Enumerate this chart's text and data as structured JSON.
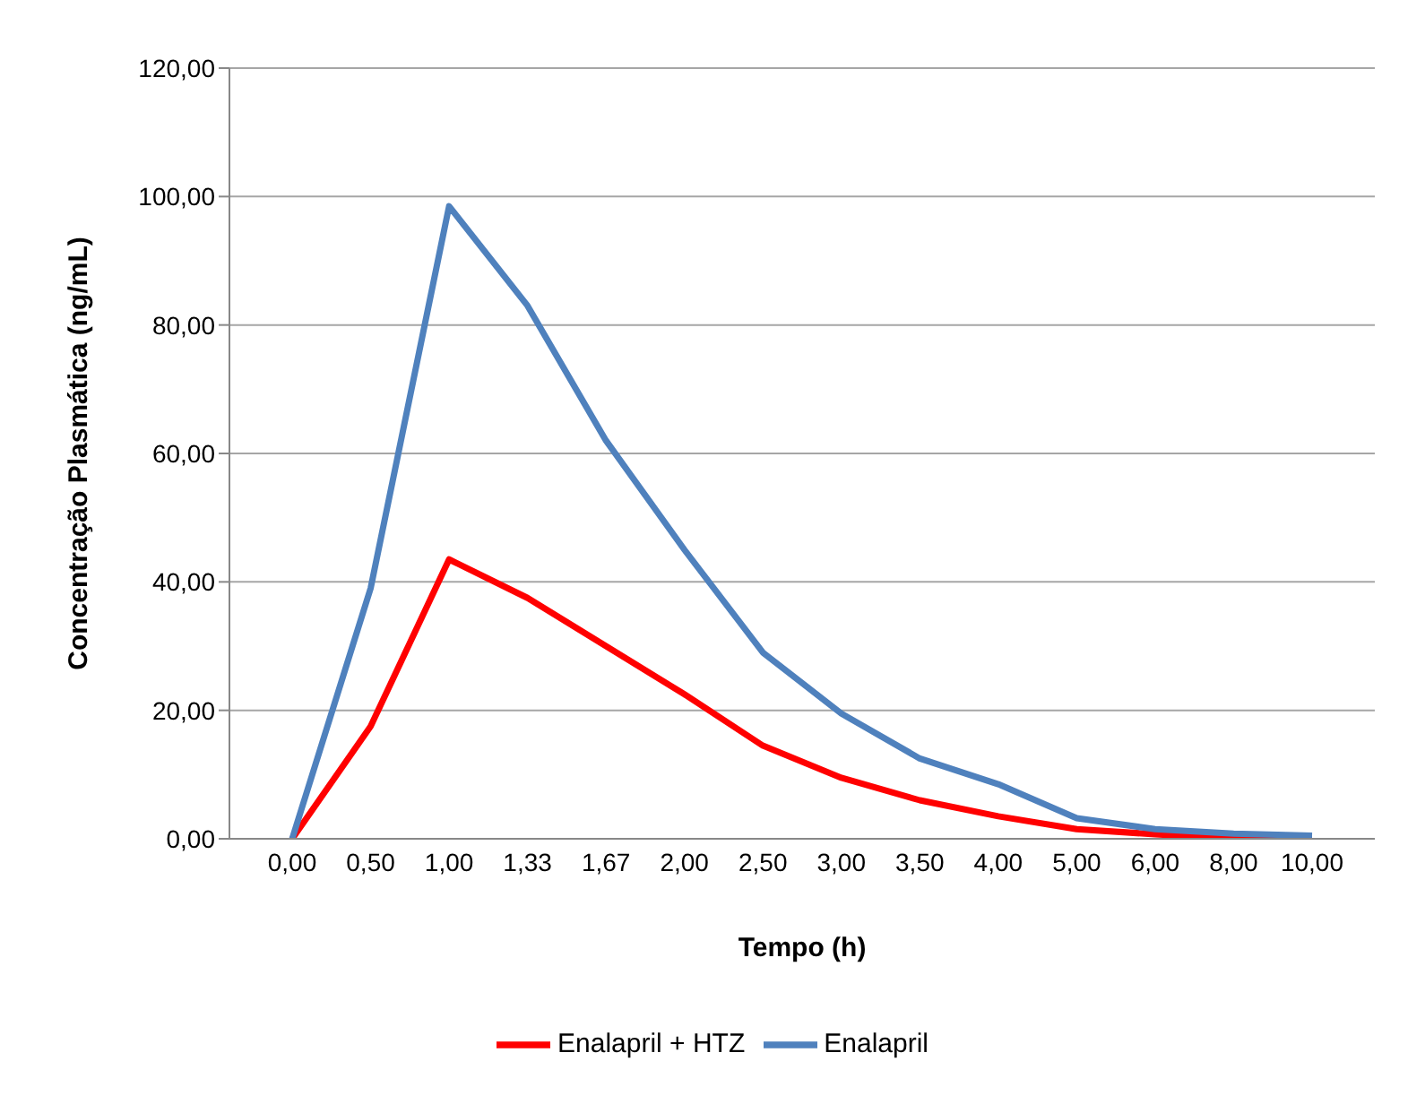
{
  "chart_data": {
    "type": "line",
    "xlabel": "Tempo (h)",
    "ylabel": "Concentração Plasmática (ng/mL)",
    "categories": [
      "0,00",
      "0,50",
      "1,00",
      "1,33",
      "1,67",
      "2,00",
      "2,50",
      "3,00",
      "3,50",
      "4,00",
      "5,00",
      "6,00",
      "8,00",
      "10,00"
    ],
    "series": [
      {
        "name": "Enalapril + HTZ",
        "color": "#ff0000",
        "values": [
          0,
          17.5,
          43.5,
          37.5,
          30,
          22.5,
          14.5,
          9.5,
          6,
          3.5,
          1.5,
          0.7,
          0,
          0
        ]
      },
      {
        "name": "Enalapril",
        "color": "#4f81bd",
        "values": [
          0,
          39,
          98.5,
          83,
          62,
          45,
          29,
          19.5,
          12.5,
          8.5,
          3.2,
          1.5,
          0.8,
          0.5
        ]
      }
    ],
    "ylim": [
      0,
      120
    ],
    "yticks": [
      {
        "value": 0,
        "label": "0,00"
      },
      {
        "value": 20,
        "label": "20,00"
      },
      {
        "value": 40,
        "label": "40,00"
      },
      {
        "value": 60,
        "label": "60,00"
      },
      {
        "value": 80,
        "label": "80,00"
      },
      {
        "value": 100,
        "label": "100,00"
      },
      {
        "value": 120,
        "label": "120,00"
      }
    ],
    "grid": "y",
    "legend": "bottom",
    "marker": "none",
    "line_style": "solid"
  }
}
